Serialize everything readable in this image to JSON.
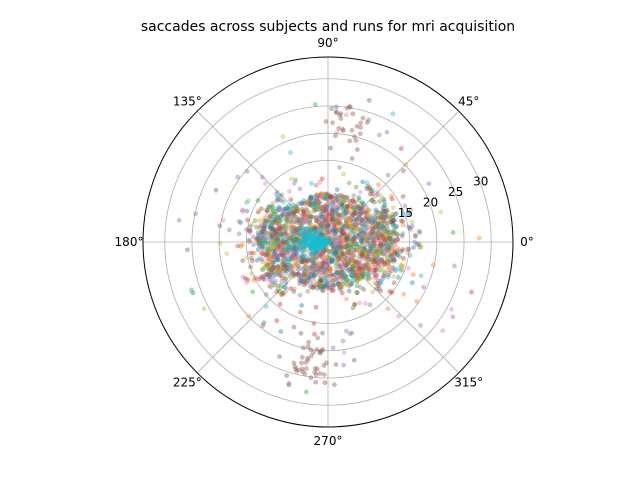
{
  "chart_data": {
    "type": "scatter",
    "projection": "polar",
    "title": "saccades across subjects and runs for mri acquisition",
    "theta_tick_labels": [
      "0°",
      "45°",
      "90°",
      "135°",
      "180°",
      "225°",
      "270°",
      "315°"
    ],
    "theta_ticks_deg": [
      0,
      45,
      90,
      135,
      180,
      225,
      270,
      315
    ],
    "r_tick_labels": [
      "15",
      "20",
      "25",
      "30"
    ],
    "r_ticks": [
      15,
      20,
      25,
      30
    ],
    "rlim": [
      0,
      34
    ],
    "grid": true,
    "legend": "none",
    "marker_alpha": 0.4,
    "series_colors": [
      "#1f77b4",
      "#ff7f0e",
      "#2ca02c",
      "#d62728",
      "#9467bd",
      "#8c564b",
      "#e377c2",
      "#7f7f7f",
      "#bcbd22",
      "#17becf"
    ],
    "point_clusters": [
      {
        "series": "all",
        "theta_range_deg": [
          0,
          360
        ],
        "r_range": [
          0,
          9
        ],
        "count": 1500,
        "weighting": "center"
      },
      {
        "series": "all",
        "theta_range_deg": [
          0,
          360
        ],
        "r_range": [
          9,
          13
        ],
        "count": 700,
        "weighting": "horizontal"
      },
      {
        "series": "all",
        "theta_range_deg": [
          0,
          360
        ],
        "r_range": [
          13,
          17
        ],
        "count": 130,
        "weighting": "horizontal"
      },
      {
        "series": "all",
        "theta_range_deg": [
          0,
          360
        ],
        "r_range": [
          17,
          28
        ],
        "count": 60,
        "weighting": "uniform"
      },
      {
        "series": 5,
        "theta_center_deg": 80,
        "theta_spread_deg": 7,
        "r_center": 22,
        "r_spread": 3,
        "count": 30
      },
      {
        "series": 5,
        "theta_center_deg": 261,
        "theta_spread_deg": 6,
        "r_center": 22,
        "r_spread": 3,
        "count": 45
      },
      {
        "series": 9,
        "theta_center_deg": 180,
        "theta_spread_deg": 20,
        "r_center": 2,
        "r_spread": 2,
        "count": 220
      }
    ]
  }
}
